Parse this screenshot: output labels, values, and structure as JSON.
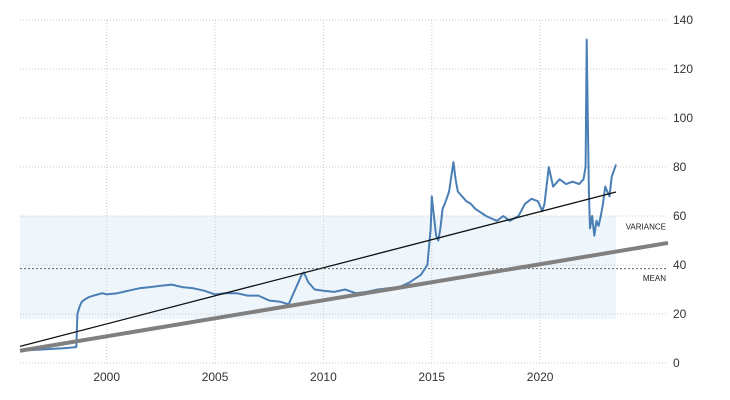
{
  "chart_data": {
    "type": "line",
    "title": "",
    "xlabel": "",
    "ylabel": "",
    "xlim": [
      1996.0,
      2025.9
    ],
    "ylim": [
      0,
      140
    ],
    "x_ticks": [
      2000,
      2005,
      2010,
      2015,
      2020
    ],
    "y_ticks": [
      0,
      20,
      40,
      60,
      80,
      100,
      120,
      140
    ],
    "x_tick_labels": [
      "2000",
      "2005",
      "2010",
      "2015",
      "2020"
    ],
    "y_tick_labels": [
      "0",
      "20",
      "40",
      "60",
      "80",
      "100",
      "120",
      "140"
    ],
    "grid": true,
    "legend": "none",
    "series": [
      {
        "color": "#4a7fb5",
        "x": [
          1996.0,
          1997.0,
          1998.0,
          1998.6,
          1998.65,
          1998.75,
          1998.85,
          1999.0,
          1999.2,
          1999.4,
          1999.6,
          1999.8,
          2000.0,
          2000.5,
          2001.0,
          2001.5,
          2002.0,
          2002.5,
          2003.0,
          2003.5,
          2004.0,
          2004.5,
          2005.0,
          2005.5,
          2006.0,
          2006.5,
          2007.0,
          2007.5,
          2008.0,
          2008.4,
          2008.7,
          2009.0,
          2009.1,
          2009.3,
          2009.6,
          2010.0,
          2010.5,
          2011.0,
          2011.5,
          2012.0,
          2012.5,
          2013.0,
          2013.5,
          2014.0,
          2014.5,
          2014.8,
          2014.95,
          2015.0,
          2015.1,
          2015.2,
          2015.3,
          2015.4,
          2015.5,
          2015.6,
          2015.8,
          2016.0,
          2016.1,
          2016.2,
          2016.4,
          2016.6,
          2016.8,
          2017.0,
          2017.5,
          2018.0,
          2018.3,
          2018.6,
          2019.0,
          2019.3,
          2019.6,
          2019.9,
          2020.1,
          2020.2,
          2020.4,
          2020.6,
          2020.9,
          2021.2,
          2021.5,
          2021.8,
          2022.0,
          2022.1,
          2022.15,
          2022.2,
          2022.25,
          2022.3,
          2022.4,
          2022.5,
          2022.6,
          2022.7,
          2022.8,
          2022.9,
          2023.0,
          2023.1,
          2023.2,
          2023.3,
          2023.5
        ],
        "values": [
          5,
          5.5,
          6,
          6.5,
          20,
          23,
          25,
          26,
          27,
          27.5,
          28,
          28.5,
          28,
          28.5,
          29.5,
          30.5,
          31,
          31.5,
          32,
          31,
          30.5,
          29.5,
          28,
          28.5,
          28.5,
          27.5,
          27.5,
          25.5,
          25,
          24,
          30,
          36,
          37,
          33,
          30,
          29.5,
          29,
          30,
          28.5,
          29,
          30,
          30.5,
          31,
          33,
          36,
          40,
          55,
          68,
          60,
          52,
          50,
          55,
          63,
          65,
          70,
          82,
          75,
          70,
          68,
          66,
          65,
          63,
          60,
          58,
          60,
          58,
          60,
          65,
          67,
          66,
          62,
          65,
          80,
          72,
          75,
          73,
          74,
          73,
          75,
          80,
          132,
          100,
          70,
          55,
          60,
          52,
          58,
          56,
          60,
          65,
          72,
          70,
          68,
          76,
          81
        ]
      }
    ],
    "trend_lines": [
      {
        "label": "VARIANCE",
        "color": "#111111",
        "x": [
          1996.0,
          2023.5
        ],
        "values": [
          6.8,
          69.8
        ]
      },
      {
        "label": "MEAN",
        "color": "#808080",
        "x": [
          1996.0,
          2025.9
        ],
        "values": [
          5.0,
          49.0
        ]
      }
    ],
    "band": {
      "from": 18,
      "to": 60,
      "color": "#eef6fc"
    },
    "reference_line": {
      "value": 38.5,
      "color": "#666666"
    }
  }
}
